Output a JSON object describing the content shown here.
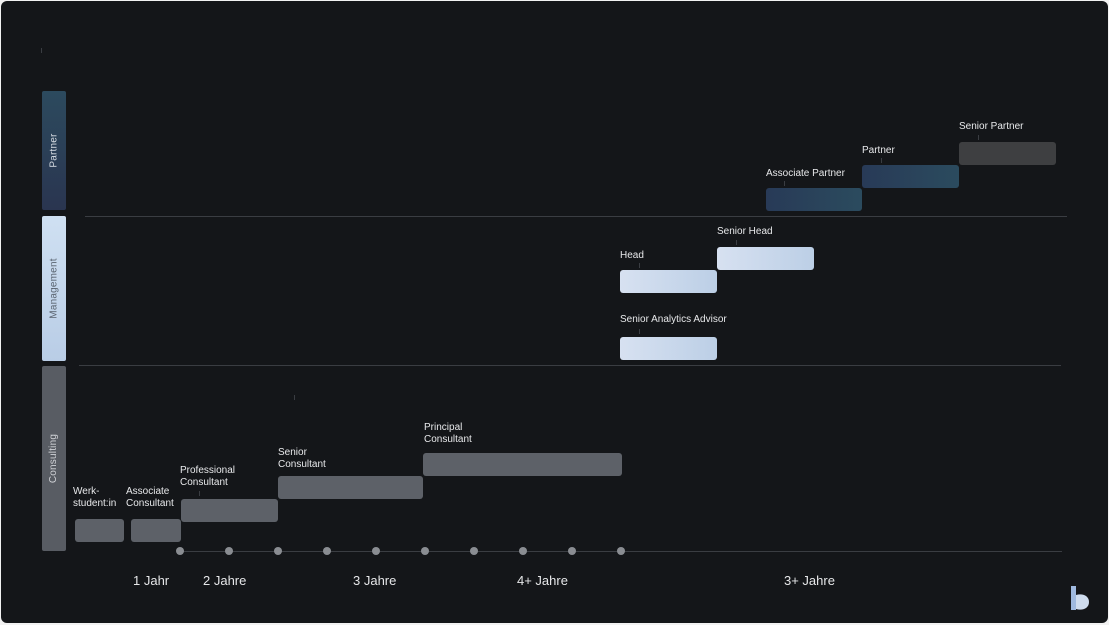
{
  "bands": {
    "partner": "Partner",
    "management": "Management",
    "consulting": "Consulting"
  },
  "roles": {
    "werkstudent": "Werk-\nstudent:in",
    "associate_consultant": "Associate\nConsultant",
    "professional_consultant": "Professional\nConsultant",
    "senior_consultant": "Senior\nConsultant",
    "principal_consultant": "Principal\nConsultant",
    "senior_analytics_advisor": "Senior Analytics Advisor",
    "head": "Head",
    "senior_head": "Senior Head",
    "associate_partner": "Associate Partner",
    "partner": "Partner",
    "senior_partner": "Senior Partner"
  },
  "axis": {
    "labels": [
      "1 Jahr",
      "2 Jahre",
      "3 Jahre",
      "4+ Jahre",
      "3+ Jahre"
    ],
    "dot_count": 10
  },
  "colors": {
    "background": "#141619",
    "consulting": "#5d6168",
    "management": "#cfdcee",
    "partner": "#2a3d58",
    "senior_partner": "#3e3f41"
  },
  "logo": "brand-logo-icon"
}
